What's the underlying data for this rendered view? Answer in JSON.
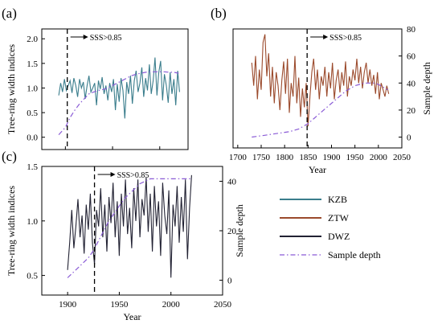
{
  "panel_labels": [
    "(a)",
    "(b)",
    "(c)"
  ],
  "legend": [
    {
      "name": "KZB",
      "color": "#3a7d8c",
      "style": "solid"
    },
    {
      "name": "ZTW",
      "color": "#9b4a2c",
      "style": "solid"
    },
    {
      "name": "DWZ",
      "color": "#222233",
      "style": "solid"
    },
    {
      "name": "Sample depth",
      "color": "#8a5bd6",
      "style": "dashdot"
    }
  ],
  "chart_data": [
    {
      "panel": "(a)",
      "type": "line",
      "ylabel": "Tree-ring width indices",
      "xlim": [
        1875,
        2030
      ],
      "ylim": [
        -0.25,
        2.2
      ],
      "yticks": [
        "0.0",
        "0.5",
        "1.0",
        "1.5",
        "2.0"
      ],
      "yticks_values": [
        0,
        0.5,
        1,
        1.5,
        2
      ],
      "sss_year": 1902,
      "annotation": "SSS>0.85",
      "series": [
        {
          "name": "KZB",
          "color": "#3a7d8c",
          "x": [
            1893,
            1895,
            1897,
            1899,
            1901,
            1903,
            1905,
            1907,
            1909,
            1911,
            1913,
            1915,
            1917,
            1919,
            1921,
            1923,
            1925,
            1927,
            1929,
            1931,
            1933,
            1935,
            1937,
            1939,
            1941,
            1943,
            1945,
            1947,
            1949,
            1951,
            1953,
            1955,
            1957,
            1959,
            1961,
            1963,
            1965,
            1967,
            1969,
            1971,
            1973,
            1975,
            1977,
            1979,
            1981,
            1983,
            1985,
            1987,
            1989,
            1991,
            1993,
            1995,
            1997,
            1999,
            2001,
            2003,
            2005,
            2007,
            2009,
            2011,
            2013,
            2015,
            2017,
            2019,
            2021
          ],
          "y": [
            0.85,
            1.1,
            0.92,
            1.18,
            0.95,
            1.05,
            1.15,
            0.9,
            1.2,
            1.05,
            0.82,
            1.18,
            1.0,
            1.12,
            0.78,
            1.05,
            1.25,
            0.92,
            1.0,
            1.1,
            0.65,
            1.15,
            0.98,
            1.22,
            0.88,
            1.05,
            0.75,
            1.1,
            0.92,
            1.18,
            0.55,
            1.08,
            0.72,
            1.2,
            0.95,
            0.38,
            1.12,
            0.88,
            1.25,
            0.68,
            1.15,
            1.35,
            0.92,
            1.1,
            1.42,
            0.82,
            1.2,
            0.95,
            1.48,
            0.88,
            1.15,
            1.62,
            0.85,
            1.32,
            1.55,
            0.75,
            1.28,
            1.05,
            0.7,
            1.32,
            0.88,
            1.18,
            0.65,
            1.35,
            0.92
          ]
        },
        {
          "name": "Sample depth",
          "color": "#8a5bd6",
          "x": [
            1893,
            1900,
            1905,
            1910,
            1915,
            1920,
            1925,
            1930,
            1935,
            1940,
            1945,
            1950,
            1955,
            1960,
            1965,
            1970,
            1975,
            1980,
            1985,
            1990,
            1995,
            2000,
            2005,
            2010,
            2015,
            2020
          ],
          "y": [
            0.05,
            0.2,
            0.4,
            0.55,
            0.68,
            0.78,
            0.88,
            0.92,
            0.95,
            0.97,
            1.0,
            1.05,
            1.1,
            1.15,
            1.2,
            1.25,
            1.28,
            1.3,
            1.32,
            1.33,
            1.33,
            1.33,
            1.33,
            1.32,
            1.32,
            1.3
          ]
        }
      ]
    },
    {
      "panel": "(b)",
      "type": "line",
      "xlabel": "Year",
      "ylabel": "Sample depth",
      "xlim": [
        1690,
        2050
      ],
      "xticks": [
        "1700",
        "1750",
        "1800",
        "1850",
        "1900",
        "1950",
        "2000",
        "2050"
      ],
      "xticks_values": [
        1700,
        1750,
        1800,
        1850,
        1900,
        1950,
        2000,
        2050
      ],
      "ylim": [
        -8,
        80
      ],
      "yticks": [
        "0",
        "20",
        "40",
        "60",
        "80"
      ],
      "yticks_values": [
        0,
        20,
        40,
        60,
        80
      ],
      "sss_year": 1848,
      "annotation": "SSS>0.85",
      "series": [
        {
          "name": "ZTW",
          "color": "#9b4a2c",
          "x": [
            1730,
            1734,
            1738,
            1742,
            1746,
            1750,
            1754,
            1758,
            1762,
            1766,
            1770,
            1774,
            1778,
            1782,
            1786,
            1790,
            1794,
            1798,
            1802,
            1806,
            1810,
            1814,
            1818,
            1822,
            1826,
            1830,
            1834,
            1838,
            1842,
            1846,
            1850,
            1854,
            1858,
            1862,
            1866,
            1870,
            1874,
            1878,
            1882,
            1886,
            1890,
            1894,
            1898,
            1902,
            1906,
            1910,
            1914,
            1918,
            1922,
            1926,
            1930,
            1934,
            1938,
            1942,
            1946,
            1950,
            1954,
            1958,
            1962,
            1966,
            1970,
            1974,
            1978,
            1982,
            1986,
            1990,
            1994,
            1998,
            2002,
            2006,
            2010,
            2014,
            2018,
            2022
          ],
          "y": [
            55,
            38,
            60,
            28,
            50,
            35,
            70,
            76,
            45,
            62,
            30,
            52,
            25,
            48,
            38,
            20,
            42,
            56,
            32,
            58,
            18,
            40,
            30,
            60,
            25,
            44,
            15,
            36,
            22,
            40,
            8,
            30,
            48,
            58,
            35,
            50,
            28,
            45,
            38,
            52,
            30,
            48,
            36,
            55,
            28,
            42,
            50,
            33,
            48,
            38,
            56,
            30,
            45,
            38,
            50,
            42,
            58,
            40,
            52,
            36,
            48,
            55,
            40,
            50,
            38,
            46,
            32,
            48,
            28,
            40,
            35,
            30,
            38,
            32
          ]
        },
        {
          "name": "Sample depth",
          "color": "#8a5bd6",
          "x": [
            1730,
            1750,
            1770,
            1790,
            1810,
            1830,
            1850,
            1860,
            1870,
            1880,
            1890,
            1900,
            1910,
            1920,
            1930,
            1940,
            1950,
            1960,
            1970,
            1980,
            1990,
            2000,
            2010,
            2020
          ],
          "y": [
            0,
            1,
            2,
            3,
            4,
            6,
            10,
            13,
            16,
            19,
            22,
            25,
            28,
            31,
            34,
            36,
            38,
            39,
            40,
            40,
            40,
            39,
            37,
            35
          ]
        }
      ]
    },
    {
      "panel": "(c)",
      "type": "line",
      "xlabel": "Year",
      "ylabel": "Tree-ring width indices",
      "ylabel_right": "Sample depth",
      "xlim": [
        1875,
        2050
      ],
      "xticks": [
        "1900",
        "1950",
        "2000",
        "2050"
      ],
      "xticks_values": [
        1900,
        1950,
        2000,
        2050
      ],
      "ylim": [
        0.32,
        1.5
      ],
      "yticks": [
        "0.5",
        "1.0",
        "1.5"
      ],
      "yticks_values": [
        0.5,
        1.0,
        1.5
      ],
      "y2lim": [
        -6,
        46
      ],
      "y2ticks": [
        "0",
        "20",
        "40"
      ],
      "y2ticks_values": [
        0,
        20,
        40
      ],
      "sss_year": 1926,
      "annotation": "SSS>0.85",
      "series": [
        {
          "name": "DWZ",
          "color": "#222233",
          "x": [
            1900,
            1902,
            1904,
            1906,
            1908,
            1910,
            1912,
            1914,
            1916,
            1918,
            1920,
            1922,
            1924,
            1926,
            1928,
            1930,
            1932,
            1934,
            1936,
            1938,
            1940,
            1942,
            1944,
            1946,
            1948,
            1950,
            1952,
            1954,
            1956,
            1958,
            1960,
            1962,
            1964,
            1966,
            1968,
            1970,
            1972,
            1974,
            1976,
            1978,
            1980,
            1982,
            1984,
            1986,
            1988,
            1990,
            1992,
            1994,
            1996,
            1998,
            2000,
            2002,
            2004,
            2006,
            2008,
            2010,
            2012,
            2014,
            2016,
            2018,
            2020
          ],
          "y": [
            0.55,
            0.8,
            1.1,
            0.75,
            0.95,
            1.2,
            0.85,
            1.05,
            0.7,
            1.15,
            0.92,
            1.25,
            0.8,
            0.6,
            1.1,
            0.95,
            1.3,
            0.85,
            1.15,
            0.72,
            1.22,
            0.98,
            1.35,
            0.85,
            1.18,
            0.68,
            1.25,
            0.95,
            1.38,
            0.88,
            1.12,
            0.75,
            1.3,
            1.0,
            1.38,
            0.85,
            1.2,
            1.05,
            1.4,
            0.9,
            1.25,
            0.72,
            1.32,
            0.95,
            1.18,
            0.68,
            1.35,
            1.05,
            0.88,
            1.28,
            0.48,
            1.15,
            0.95,
            1.32,
            0.8,
            1.22,
            0.9,
            1.38,
            0.65,
            1.12,
            1.42
          ]
        },
        {
          "name": "Sample depth",
          "color": "#8a5bd6",
          "x": [
            1900,
            1905,
            1910,
            1915,
            1920,
            1925,
            1930,
            1935,
            1940,
            1945,
            1950,
            1955,
            1960,
            1965,
            1970,
            1975,
            1980,
            1985,
            1990,
            1995,
            2000,
            2005,
            2010,
            2015,
            2020
          ],
          "y": [
            1,
            3,
            5,
            7,
            9,
            12,
            16,
            20,
            24,
            27,
            30,
            33,
            35,
            37,
            39,
            40,
            41,
            41,
            41,
            41,
            41,
            41,
            41,
            41,
            41
          ]
        }
      ]
    }
  ]
}
